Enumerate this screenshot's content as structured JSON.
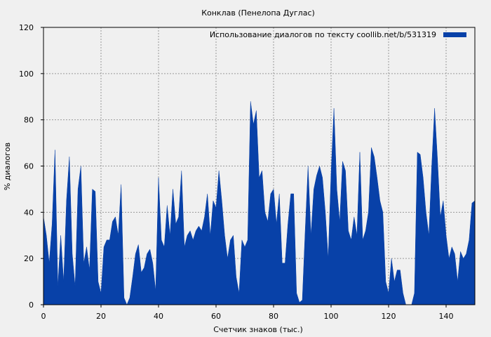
{
  "chart_data": {
    "type": "area",
    "title": "Конклав (Пенелопа Дуглас)",
    "xlabel": "Счетчик знаков (тыс.)",
    "ylabel": "% диалогов",
    "xlim": [
      0,
      150
    ],
    "ylim": [
      0,
      120
    ],
    "xticks": [
      0,
      20,
      40,
      60,
      80,
      100,
      120,
      140
    ],
    "yticks": [
      0,
      20,
      40,
      60,
      80,
      100,
      120
    ],
    "grid": true,
    "legend_position": "top-right",
    "series": [
      {
        "name": "Использование диалогов по тексту  coollib.net/b/531319",
        "color": "#0841a8",
        "x": [
          0,
          1,
          2,
          3,
          4,
          5,
          6,
          7,
          8,
          9,
          10,
          11,
          12,
          13,
          14,
          15,
          16,
          17,
          18,
          19,
          20,
          21,
          22,
          23,
          24,
          25,
          26,
          27,
          28,
          29,
          30,
          31,
          32,
          33,
          34,
          35,
          36,
          37,
          38,
          39,
          40,
          41,
          42,
          43,
          44,
          45,
          46,
          47,
          48,
          49,
          50,
          51,
          52,
          53,
          54,
          55,
          56,
          57,
          58,
          59,
          60,
          61,
          62,
          63,
          64,
          65,
          66,
          67,
          68,
          69,
          70,
          71,
          72,
          73,
          74,
          75,
          76,
          77,
          78,
          79,
          80,
          81,
          82,
          83,
          84,
          85,
          86,
          87,
          88,
          89,
          90,
          91,
          92,
          93,
          94,
          95,
          96,
          97,
          98,
          99,
          100,
          101,
          102,
          103,
          104,
          105,
          106,
          107,
          108,
          109,
          110,
          111,
          112,
          113,
          114,
          115,
          116,
          117,
          118,
          119,
          120,
          121,
          122,
          123,
          124,
          125,
          126,
          127,
          128,
          129,
          130,
          131,
          132,
          133,
          134,
          135,
          136,
          137,
          138,
          139,
          140,
          141,
          142,
          143,
          144,
          145,
          146,
          147,
          148,
          149,
          150
        ],
        "values": [
          38,
          30,
          18,
          35,
          67,
          8,
          30,
          10,
          45,
          64,
          22,
          8,
          50,
          60,
          18,
          25,
          15,
          50,
          49,
          10,
          5,
          25,
          28,
          28,
          36,
          38,
          30,
          52,
          3,
          0,
          3,
          12,
          22,
          26,
          14,
          16,
          22,
          24,
          18,
          6,
          55,
          28,
          25,
          43,
          30,
          50,
          35,
          38,
          58,
          25,
          30,
          32,
          28,
          32,
          34,
          32,
          38,
          48,
          30,
          45,
          42,
          58,
          45,
          30,
          20,
          28,
          30,
          12,
          5,
          28,
          25,
          28,
          88,
          78,
          84,
          55,
          58,
          40,
          36,
          48,
          50,
          35,
          48,
          18,
          18,
          35,
          48,
          48,
          5,
          1,
          2,
          32,
          60,
          30,
          50,
          56,
          60,
          55,
          40,
          20,
          57,
          85,
          50,
          36,
          62,
          58,
          32,
          28,
          38,
          30,
          66,
          28,
          32,
          40,
          68,
          64,
          55,
          45,
          40,
          10,
          5,
          20,
          10,
          15,
          15,
          5,
          0,
          0,
          0,
          5,
          66,
          65,
          55,
          40,
          30,
          60,
          85,
          63,
          38,
          45,
          30,
          20,
          25,
          22,
          10,
          23,
          20,
          22,
          28,
          44,
          45
        ]
      }
    ]
  }
}
